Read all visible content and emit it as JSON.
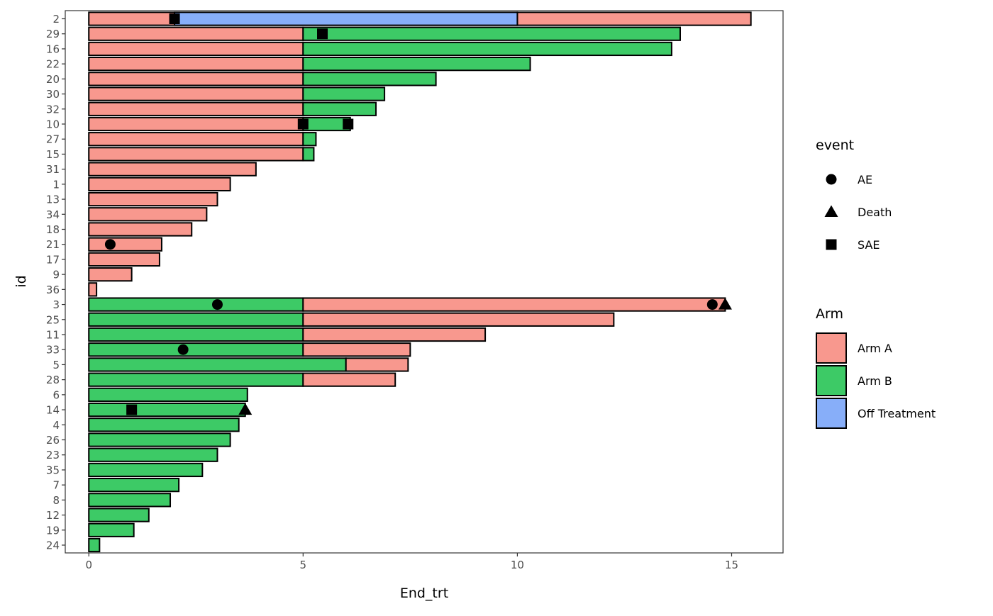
{
  "chart_data": {
    "type": "bar",
    "orientation": "horizontal-stacked-swimmer",
    "xlabel": "End_trt",
    "ylabel": "id",
    "xlim": [
      -0.55,
      16.2
    ],
    "xticks": [
      0,
      5,
      10,
      15
    ],
    "grid": false,
    "colors": {
      "Arm A": "#F8988E",
      "Arm B": "#3DCA66",
      "Off Treatment": "#87AEF9"
    },
    "rows": [
      {
        "id": "2",
        "segments": [
          {
            "group": "Arm A",
            "start": 0,
            "end": 10
          },
          {
            "group": "Arm A",
            "start": 10,
            "end": 15.45
          },
          {
            "group": "Off Treatment",
            "start": 2,
            "end": 10
          }
        ]
      },
      {
        "id": "29",
        "segments": [
          {
            "group": "Arm A",
            "start": 0,
            "end": 5
          },
          {
            "group": "Arm B",
            "start": 5,
            "end": 13.8
          }
        ]
      },
      {
        "id": "16",
        "segments": [
          {
            "group": "Arm A",
            "start": 0,
            "end": 5
          },
          {
            "group": "Arm B",
            "start": 5,
            "end": 13.6
          }
        ]
      },
      {
        "id": "22",
        "segments": [
          {
            "group": "Arm A",
            "start": 0,
            "end": 5
          },
          {
            "group": "Arm B",
            "start": 5,
            "end": 10.3
          }
        ]
      },
      {
        "id": "20",
        "segments": [
          {
            "group": "Arm A",
            "start": 0,
            "end": 5
          },
          {
            "group": "Arm B",
            "start": 5,
            "end": 8.1
          }
        ]
      },
      {
        "id": "30",
        "segments": [
          {
            "group": "Arm A",
            "start": 0,
            "end": 5
          },
          {
            "group": "Arm B",
            "start": 5,
            "end": 6.9
          }
        ]
      },
      {
        "id": "32",
        "segments": [
          {
            "group": "Arm A",
            "start": 0,
            "end": 5
          },
          {
            "group": "Arm B",
            "start": 5,
            "end": 6.7
          }
        ]
      },
      {
        "id": "10",
        "segments": [
          {
            "group": "Arm A",
            "start": 0,
            "end": 5
          },
          {
            "group": "Arm B",
            "start": 5,
            "end": 6.1
          }
        ]
      },
      {
        "id": "27",
        "segments": [
          {
            "group": "Arm A",
            "start": 0,
            "end": 5
          },
          {
            "group": "Arm B",
            "start": 5,
            "end": 5.3
          }
        ]
      },
      {
        "id": "15",
        "segments": [
          {
            "group": "Arm A",
            "start": 0,
            "end": 5
          },
          {
            "group": "Arm B",
            "start": 5,
            "end": 5.25
          }
        ]
      },
      {
        "id": "31",
        "segments": [
          {
            "group": "Arm A",
            "start": 0,
            "end": 3.9
          }
        ]
      },
      {
        "id": "1",
        "segments": [
          {
            "group": "Arm A",
            "start": 0,
            "end": 3.3
          }
        ]
      },
      {
        "id": "13",
        "segments": [
          {
            "group": "Arm A",
            "start": 0,
            "end": 3.0
          }
        ]
      },
      {
        "id": "34",
        "segments": [
          {
            "group": "Arm A",
            "start": 0,
            "end": 2.75
          }
        ]
      },
      {
        "id": "18",
        "segments": [
          {
            "group": "Arm A",
            "start": 0,
            "end": 2.4
          }
        ]
      },
      {
        "id": "21",
        "segments": [
          {
            "group": "Arm A",
            "start": 0,
            "end": 1.7
          }
        ]
      },
      {
        "id": "17",
        "segments": [
          {
            "group": "Arm A",
            "start": 0,
            "end": 1.65
          }
        ]
      },
      {
        "id": "9",
        "segments": [
          {
            "group": "Arm A",
            "start": 0,
            "end": 1.0
          }
        ]
      },
      {
        "id": "36",
        "segments": [
          {
            "group": "Arm A",
            "start": 0,
            "end": 0.18
          }
        ]
      },
      {
        "id": "3",
        "segments": [
          {
            "group": "Arm B",
            "start": 0,
            "end": 5
          },
          {
            "group": "Arm A",
            "start": 5,
            "end": 14.85
          }
        ]
      },
      {
        "id": "25",
        "segments": [
          {
            "group": "Arm B",
            "start": 0,
            "end": 5
          },
          {
            "group": "Arm A",
            "start": 5,
            "end": 12.25
          }
        ]
      },
      {
        "id": "11",
        "segments": [
          {
            "group": "Arm B",
            "start": 0,
            "end": 5
          },
          {
            "group": "Arm A",
            "start": 5,
            "end": 9.25
          }
        ]
      },
      {
        "id": "33",
        "segments": [
          {
            "group": "Arm B",
            "start": 0,
            "end": 5
          },
          {
            "group": "Arm A",
            "start": 5,
            "end": 7.5
          }
        ]
      },
      {
        "id": "5",
        "segments": [
          {
            "group": "Arm B",
            "start": 0,
            "end": 6
          },
          {
            "group": "Arm A",
            "start": 6,
            "end": 7.45
          }
        ]
      },
      {
        "id": "28",
        "segments": [
          {
            "group": "Arm B",
            "start": 0,
            "end": 5
          },
          {
            "group": "Arm A",
            "start": 5,
            "end": 7.15
          }
        ]
      },
      {
        "id": "6",
        "segments": [
          {
            "group": "Arm B",
            "start": 0,
            "end": 3.7
          }
        ]
      },
      {
        "id": "14",
        "segments": [
          {
            "group": "Arm B",
            "start": 0,
            "end": 3.65
          }
        ]
      },
      {
        "id": "4",
        "segments": [
          {
            "group": "Arm B",
            "start": 0,
            "end": 3.5
          }
        ]
      },
      {
        "id": "26",
        "segments": [
          {
            "group": "Arm B",
            "start": 0,
            "end": 3.3
          }
        ]
      },
      {
        "id": "23",
        "segments": [
          {
            "group": "Arm B",
            "start": 0,
            "end": 3.0
          }
        ]
      },
      {
        "id": "35",
        "segments": [
          {
            "group": "Arm B",
            "start": 0,
            "end": 2.65
          }
        ]
      },
      {
        "id": "7",
        "segments": [
          {
            "group": "Arm B",
            "start": 0,
            "end": 2.1
          }
        ]
      },
      {
        "id": "8",
        "segments": [
          {
            "group": "Arm B",
            "start": 0,
            "end": 1.9
          }
        ]
      },
      {
        "id": "12",
        "segments": [
          {
            "group": "Arm B",
            "start": 0,
            "end": 1.4
          }
        ]
      },
      {
        "id": "19",
        "segments": [
          {
            "group": "Arm B",
            "start": 0,
            "end": 1.05
          }
        ]
      },
      {
        "id": "24",
        "segments": [
          {
            "group": "Arm B",
            "start": 0,
            "end": 0.25
          }
        ]
      }
    ],
    "events": [
      {
        "id": "2",
        "type": "SAE",
        "x": 2.0
      },
      {
        "id": "29",
        "type": "SAE",
        "x": 5.45
      },
      {
        "id": "10",
        "type": "SAE",
        "x": 5.0
      },
      {
        "id": "10",
        "type": "SAE",
        "x": 6.05
      },
      {
        "id": "21",
        "type": "AE",
        "x": 0.5
      },
      {
        "id": "3",
        "type": "AE",
        "x": 3.0
      },
      {
        "id": "3",
        "type": "AE",
        "x": 14.55
      },
      {
        "id": "3",
        "type": "Death",
        "x": 14.85
      },
      {
        "id": "33",
        "type": "AE",
        "x": 2.2
      },
      {
        "id": "14",
        "type": "SAE",
        "x": 1.0
      },
      {
        "id": "14",
        "type": "Death",
        "x": 3.65
      }
    ],
    "legends": [
      {
        "title": "event",
        "kind": "shape",
        "items": [
          {
            "label": "AE",
            "shape": "circle"
          },
          {
            "label": "Death",
            "shape": "triangle"
          },
          {
            "label": "SAE",
            "shape": "square"
          }
        ]
      },
      {
        "title": "Arm",
        "kind": "fill",
        "items": [
          {
            "label": "Arm A",
            "color": "#F8988E"
          },
          {
            "label": "Arm B",
            "color": "#3DCA66"
          },
          {
            "label": "Off Treatment",
            "color": "#87AEF9"
          }
        ]
      }
    ],
    "legend_position": "right"
  }
}
